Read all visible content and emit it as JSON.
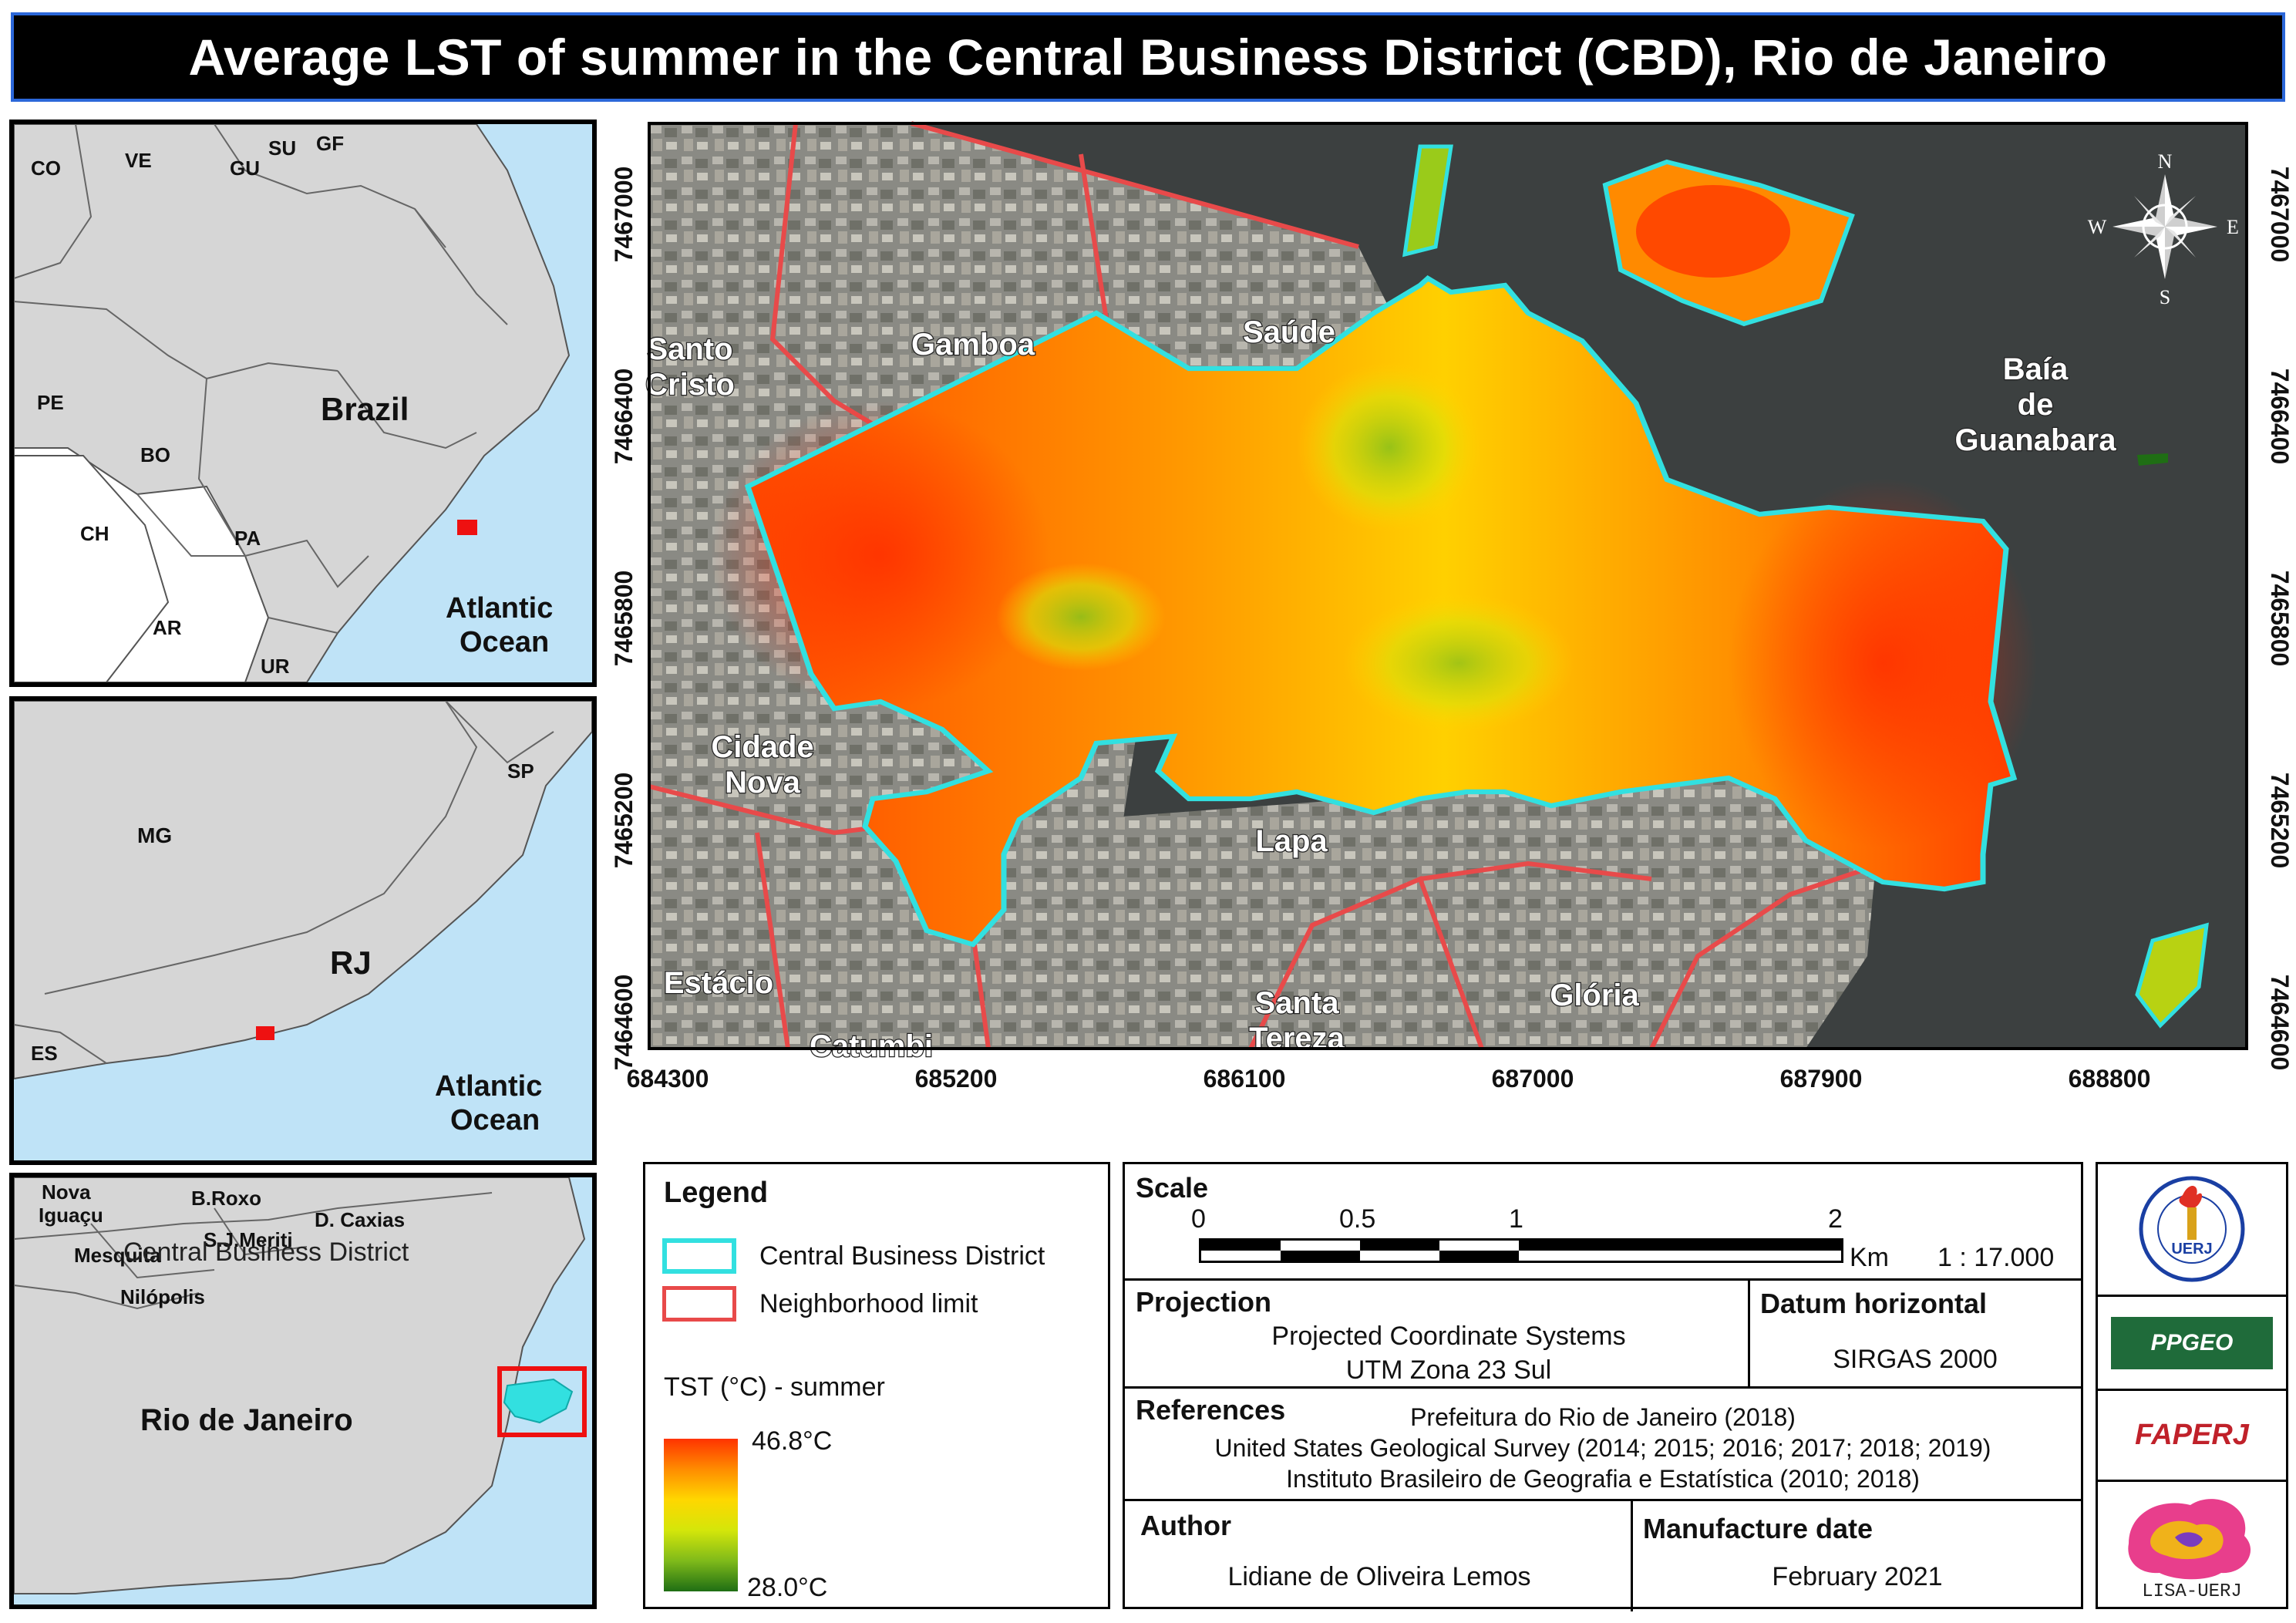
{
  "title": "Average LST of summer in the Central Business District (CBD), Rio de Janeiro",
  "colors": {
    "cbd_outline": "#32e0e0",
    "neighborhood_line": "#e84a4a",
    "locator_red": "#ee1111",
    "water": "#bfe3f7",
    "land": "#d6d6d6",
    "title_bg": "#000000",
    "title_border": "#2b67d9"
  },
  "inset_brazil": {
    "countries": [
      "CO",
      "VE",
      "GU",
      "SU",
      "GF",
      "PE",
      "BO",
      "CH",
      "PA",
      "AR",
      "UR"
    ],
    "country_label": "Brazil",
    "ocean_label": [
      "Atlantic",
      "Ocean"
    ]
  },
  "inset_state": {
    "states": [
      "SP",
      "MG",
      "ES"
    ],
    "state_label": "RJ",
    "ocean_label": [
      "Atlantic",
      "Ocean"
    ]
  },
  "inset_city": {
    "municipalities": [
      "Nova",
      "Iguaçu",
      "B.Roxo",
      "D. Caxias",
      "S.J.Meriti",
      "Mesquita",
      "Nilópolis"
    ],
    "cbd_label": "Central Business District",
    "city_label": "Rio de Janeiro"
  },
  "main_map": {
    "neighborhoods": {
      "santo_cristo": [
        "Santo",
        "Cristo"
      ],
      "gamboa": "Gamboa",
      "saude": "Saúde",
      "cidade_nova": [
        "Cidade",
        "Nova"
      ],
      "lapa": "Lapa",
      "estacio": "Estácio",
      "catumbi": "Catumbi",
      "santa_tereza": [
        "Santa",
        "Tereza"
      ],
      "gloria": "Glória",
      "baia": [
        "Baía",
        "de",
        "Guanabara"
      ]
    },
    "x_ticks": [
      "684300",
      "685200",
      "686100",
      "687000",
      "687900",
      "688800"
    ],
    "y_ticks": [
      "7467000",
      "7466400",
      "7465800",
      "7465200",
      "7464600"
    ],
    "compass": {
      "n": "N",
      "s": "S",
      "e": "E",
      "w": "W",
      "icon": "compass-rose-icon"
    }
  },
  "legend": {
    "heading": "Legend",
    "cbd": "Central Business District",
    "neighborhood": "Neighborhood limit",
    "ramp_title": "TST (°C) - summer",
    "max": "46.8°C",
    "min": "28.0°C",
    "ramp_colors": [
      "#ff3300",
      "#ff8c00",
      "#ffd700",
      "#d4e60a",
      "#7fba1a",
      "#1f6e14"
    ]
  },
  "scale": {
    "heading": "Scale",
    "ticks": [
      "0",
      "0.5",
      "1",
      "2"
    ],
    "unit": "Km",
    "ratio": "1 : 17.000"
  },
  "projection": {
    "heading": "Projection",
    "line1": "Projected Coordinate Systems",
    "line2": "UTM Zona 23 Sul"
  },
  "datum": {
    "heading": "Datum horizontal",
    "value": "SIRGAS 2000"
  },
  "references": {
    "heading": "References",
    "lines": [
      "Prefeitura do Rio de Janeiro (2018)",
      "United States Geological Survey (2014; 2015; 2016; 2017; 2018; 2019)",
      "Instituto Brasileiro de Geografia e Estatística (2010; 2018)"
    ]
  },
  "author": {
    "heading": "Author",
    "value": "Lidiane de Oliveira Lemos"
  },
  "manufacture": {
    "heading": "Manufacture date",
    "value": "February 2021"
  },
  "logos": {
    "uerj": "UERJ",
    "ppgeo": "PPGEO",
    "faperj": "FAPERJ",
    "lisa": "LISA-UERJ"
  }
}
